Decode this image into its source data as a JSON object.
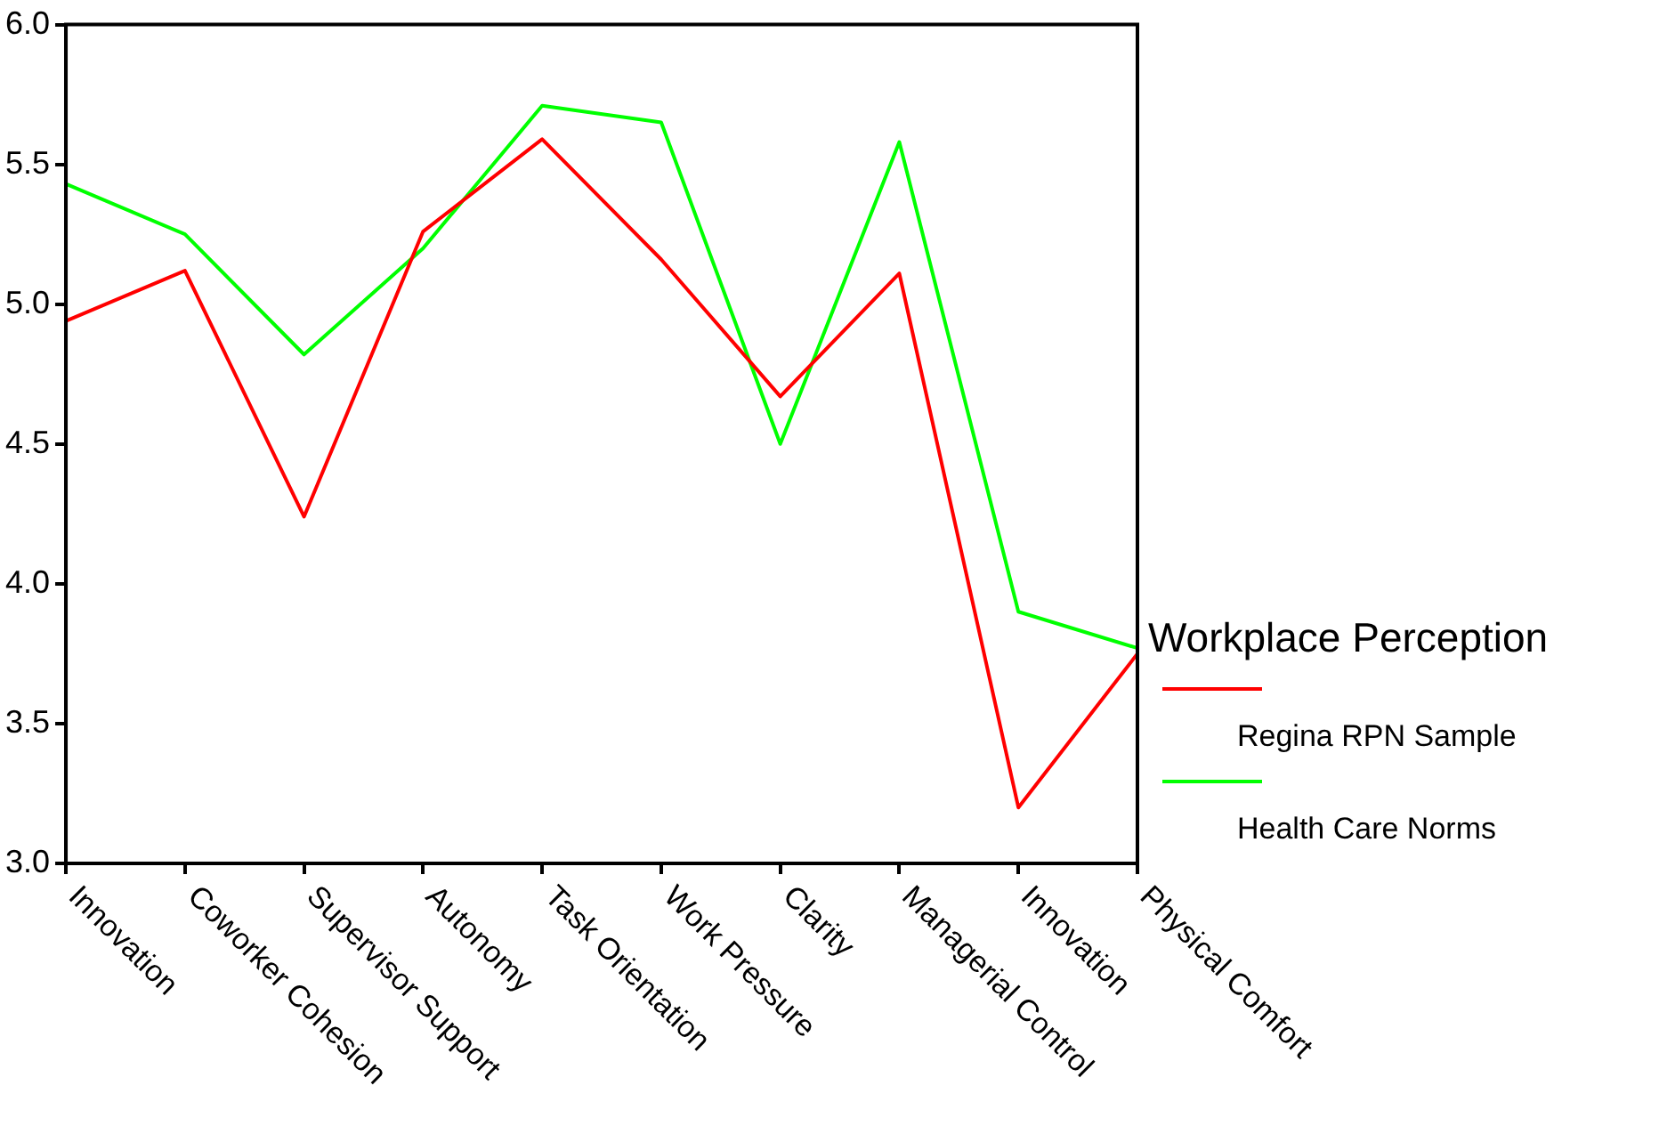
{
  "chart_data": {
    "type": "line",
    "legend_title": "Workplace Perception",
    "categories": [
      "Innovation",
      "Coworker Cohesion",
      "Supervisor Support",
      "Autonomy",
      "Task Orientation",
      "Work Pressure",
      "Clarity",
      "Managerial Control",
      "Innovation",
      "Physical Comfort"
    ],
    "series": [
      {
        "name": "Regina RPN Sample",
        "color": "#ff0000",
        "values": [
          4.94,
          5.12,
          4.24,
          5.26,
          5.59,
          5.16,
          4.67,
          5.11,
          3.2,
          3.75
        ]
      },
      {
        "name": "Health Care Norms",
        "color": "#00ff00",
        "values": [
          5.43,
          5.25,
          4.82,
          5.2,
          5.71,
          5.65,
          4.5,
          5.58,
          3.9,
          3.77
        ]
      }
    ],
    "ylim": [
      3,
      6
    ],
    "yticks": [
      {
        "value": 3,
        "label": "3.0"
      },
      {
        "value": 3.5,
        "label": "3.5"
      },
      {
        "value": 4,
        "label": "4.0"
      },
      {
        "value": 4.5,
        "label": "4.5"
      },
      {
        "value": 5,
        "label": "5.0"
      },
      {
        "value": 5.5,
        "label": "5.5"
      },
      {
        "value": 6,
        "label": "6.0"
      }
    ],
    "grid": false,
    "legend": "right",
    "marker": "none",
    "line_style": "solid"
  }
}
